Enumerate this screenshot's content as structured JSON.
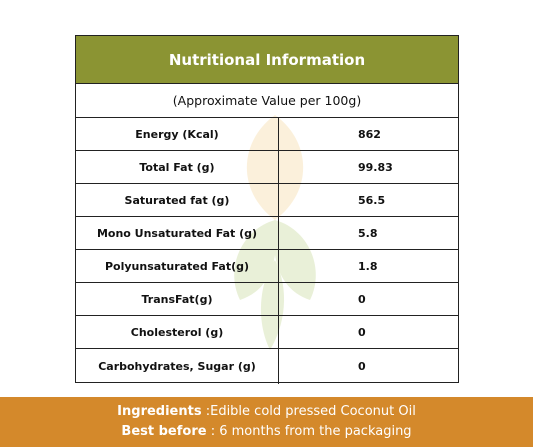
{
  "table": {
    "title": "Nutritional Information",
    "subtitle": "(Approximate Value per 100g)",
    "rows": [
      {
        "label": "Energy (Kcal)",
        "value": "862"
      },
      {
        "label": "Total Fat (g)",
        "value": "99.83"
      },
      {
        "label": "Saturated fat (g)",
        "value": "56.5"
      },
      {
        "label": "Mono Unsaturated Fat (g)",
        "value": "5.8"
      },
      {
        "label": "Polyunsaturated Fat(g)",
        "value": "1.8"
      },
      {
        "label": "TransFat(g)",
        "value": "0"
      },
      {
        "label": "Cholesterol (g)",
        "value": "0"
      },
      {
        "label": "Carbohydrates, Sugar (g)",
        "value": "0"
      }
    ]
  },
  "footer": {
    "ingredients_label": "Ingredients",
    "ingredients_text": " :Edible cold pressed Coconut Oil",
    "best_before_label": "Best before",
    "best_before_text": " : 6 months from the packaging"
  },
  "colors": {
    "header_bg": "#8b9433",
    "footer_bg": "#d4892b"
  },
  "watermark": {
    "icon": "leaf-logo-icon"
  }
}
